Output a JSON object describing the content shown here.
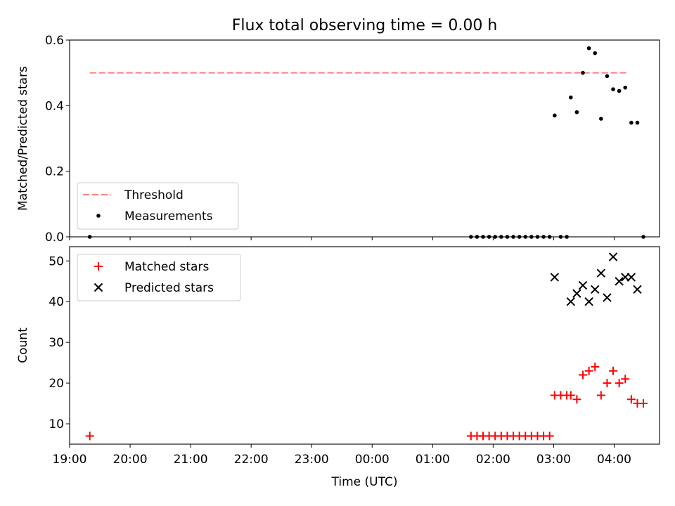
{
  "chart_data": [
    {
      "type": "scatter",
      "title": "Flux total observing time = 0.00 h",
      "ylabel": "Matched/Predicted stars",
      "xlabel": "",
      "x_axis": "time",
      "xlim": [
        "19:00",
        "04:45"
      ],
      "ylim": [
        0,
        0.6
      ],
      "yticks": [
        0.0,
        0.2,
        0.4,
        0.6
      ],
      "ytick_labels": [
        "0.0",
        "0.2",
        "0.4",
        "0.6"
      ],
      "grid": false,
      "legend_position": "lower-left",
      "threshold": {
        "name": "Threshold",
        "style": "dashed",
        "color": "#ff7f7f",
        "value": 0.5,
        "x_range": [
          "19:20",
          "04:13"
        ]
      },
      "series": [
        {
          "name": "Measurements",
          "color": "#000000",
          "marker": "dot",
          "points": [
            [
              "19:20",
              0.0
            ],
            [
              "01:38",
              0.0
            ],
            [
              "01:44",
              0.0
            ],
            [
              "01:50",
              0.0
            ],
            [
              "01:56",
              0.0
            ],
            [
              "02:02",
              0.0
            ],
            [
              "02:08",
              0.0
            ],
            [
              "02:14",
              0.0
            ],
            [
              "02:20",
              0.0
            ],
            [
              "02:26",
              0.0
            ],
            [
              "02:32",
              0.0
            ],
            [
              "02:38",
              0.0
            ],
            [
              "02:44",
              0.0
            ],
            [
              "02:50",
              0.0
            ],
            [
              "02:56",
              0.0
            ],
            [
              "03:01",
              0.37
            ],
            [
              "03:07",
              0.0
            ],
            [
              "03:13",
              0.0
            ],
            [
              "03:17",
              0.425
            ],
            [
              "03:23",
              0.38
            ],
            [
              "03:29",
              0.5
            ],
            [
              "03:35",
              0.575
            ],
            [
              "03:41",
              0.56
            ],
            [
              "03:47",
              0.36
            ],
            [
              "03:53",
              0.49
            ],
            [
              "03:59",
              0.45
            ],
            [
              "04:05",
              0.445
            ],
            [
              "04:11",
              0.455
            ],
            [
              "04:17",
              0.348
            ],
            [
              "04:23",
              0.348
            ],
            [
              "04:29",
              0.0
            ]
          ]
        }
      ]
    },
    {
      "type": "scatter",
      "title": "",
      "ylabel": "Count",
      "xlabel": "Time (UTC)",
      "x_axis": "time",
      "xlim": [
        "19:00",
        "04:45"
      ],
      "ylim": [
        5,
        53.5
      ],
      "yticks": [
        10,
        20,
        30,
        40,
        50
      ],
      "ytick_labels": [
        "10",
        "20",
        "30",
        "40",
        "50"
      ],
      "xticks": [
        "19:00",
        "20:00",
        "21:00",
        "22:00",
        "23:00",
        "00:00",
        "01:00",
        "02:00",
        "03:00",
        "04:00"
      ],
      "xtick_labels": [
        "19:00",
        "20:00",
        "21:00",
        "22:00",
        "23:00",
        "00:00",
        "01:00",
        "02:00",
        "03:00",
        "04:00"
      ],
      "grid": false,
      "legend_position": "upper-left",
      "series": [
        {
          "name": "Matched stars",
          "color": "#ff0000",
          "marker": "plus",
          "points": [
            [
              "19:20",
              7
            ],
            [
              "01:38",
              7
            ],
            [
              "01:44",
              7
            ],
            [
              "01:50",
              7
            ],
            [
              "01:56",
              7
            ],
            [
              "02:02",
              7
            ],
            [
              "02:08",
              7
            ],
            [
              "02:14",
              7
            ],
            [
              "02:20",
              7
            ],
            [
              "02:26",
              7
            ],
            [
              "02:32",
              7
            ],
            [
              "02:38",
              7
            ],
            [
              "02:44",
              7
            ],
            [
              "02:50",
              7
            ],
            [
              "02:56",
              7
            ],
            [
              "03:01",
              17
            ],
            [
              "03:07",
              17
            ],
            [
              "03:13",
              17
            ],
            [
              "03:17",
              17
            ],
            [
              "03:23",
              16
            ],
            [
              "03:29",
              22
            ],
            [
              "03:35",
              23
            ],
            [
              "03:41",
              24
            ],
            [
              "03:47",
              17
            ],
            [
              "03:53",
              20
            ],
            [
              "03:59",
              23
            ],
            [
              "04:05",
              20
            ],
            [
              "04:11",
              21
            ],
            [
              "04:17",
              16
            ],
            [
              "04:23",
              15
            ],
            [
              "04:29",
              15
            ]
          ]
        },
        {
          "name": "Predicted stars",
          "color": "#000000",
          "marker": "x",
          "points": [
            [
              "03:01",
              46
            ],
            [
              "03:17",
              40
            ],
            [
              "03:23",
              42
            ],
            [
              "03:29",
              44
            ],
            [
              "03:35",
              40
            ],
            [
              "03:41",
              43
            ],
            [
              "03:47",
              47
            ],
            [
              "03:53",
              41
            ],
            [
              "03:59",
              51
            ],
            [
              "04:05",
              45
            ],
            [
              "04:11",
              46
            ],
            [
              "04:17",
              46
            ],
            [
              "04:23",
              43
            ]
          ]
        }
      ]
    }
  ]
}
